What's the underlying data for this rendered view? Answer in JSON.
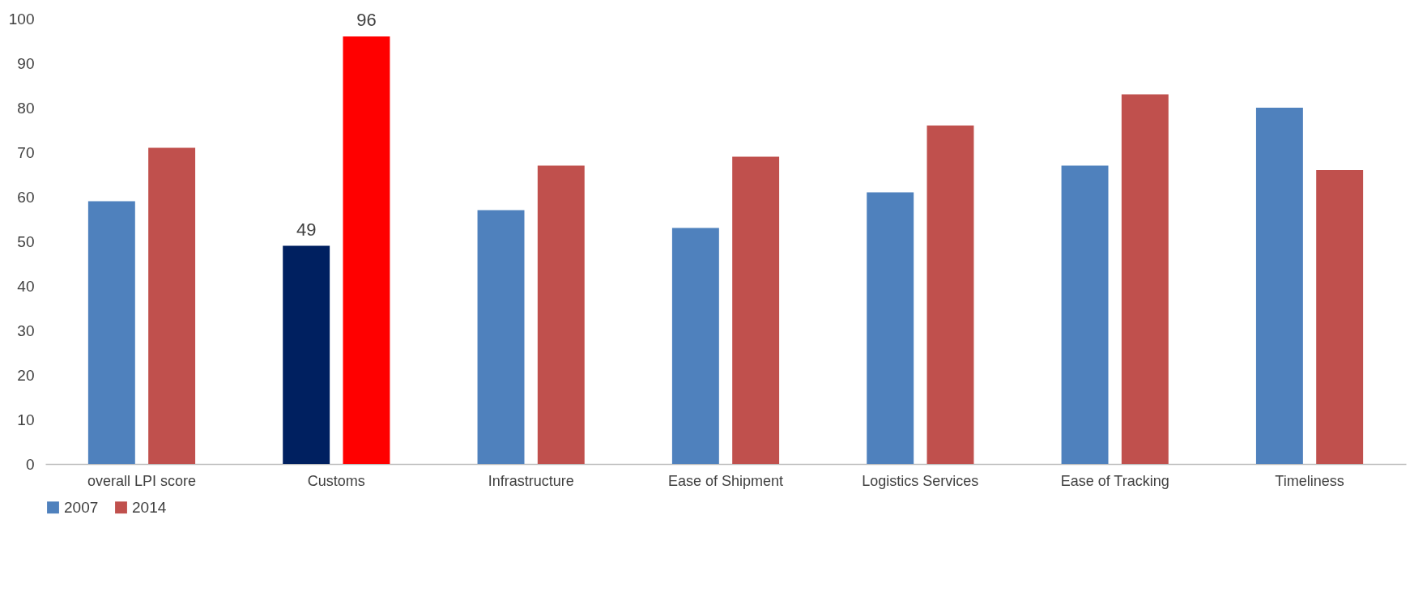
{
  "chart_data": {
    "type": "bar",
    "categories": [
      "overall LPI score",
      "Customs",
      "Infrastructure",
      "Ease of Shipment",
      "Logistics Services",
      "Ease of Tracking",
      "Timeliness"
    ],
    "series": [
      {
        "name": "2007",
        "color": "#4f81bd",
        "colors": [
          "#4f81bd",
          "#002060",
          "#4f81bd",
          "#4f81bd",
          "#4f81bd",
          "#4f81bd",
          "#4f81bd"
        ],
        "values": [
          59,
          49,
          57,
          53,
          61,
          67,
          80
        ],
        "value_labels": [
          null,
          "49",
          null,
          null,
          null,
          null,
          null
        ]
      },
      {
        "name": "2014",
        "color": "#c0504d",
        "colors": [
          "#c0504d",
          "#ff0000",
          "#c0504d",
          "#c0504d",
          "#c0504d",
          "#c0504d",
          "#c0504d"
        ],
        "values": [
          71,
          96,
          67,
          69,
          76,
          83,
          66
        ],
        "value_labels": [
          null,
          "96",
          null,
          null,
          null,
          null,
          null
        ]
      }
    ],
    "ylim": [
      0,
      100
    ],
    "yticks": [
      0,
      10,
      20,
      30,
      40,
      50,
      60,
      70,
      80,
      90,
      100
    ],
    "grid": false,
    "legend": "bottom"
  }
}
